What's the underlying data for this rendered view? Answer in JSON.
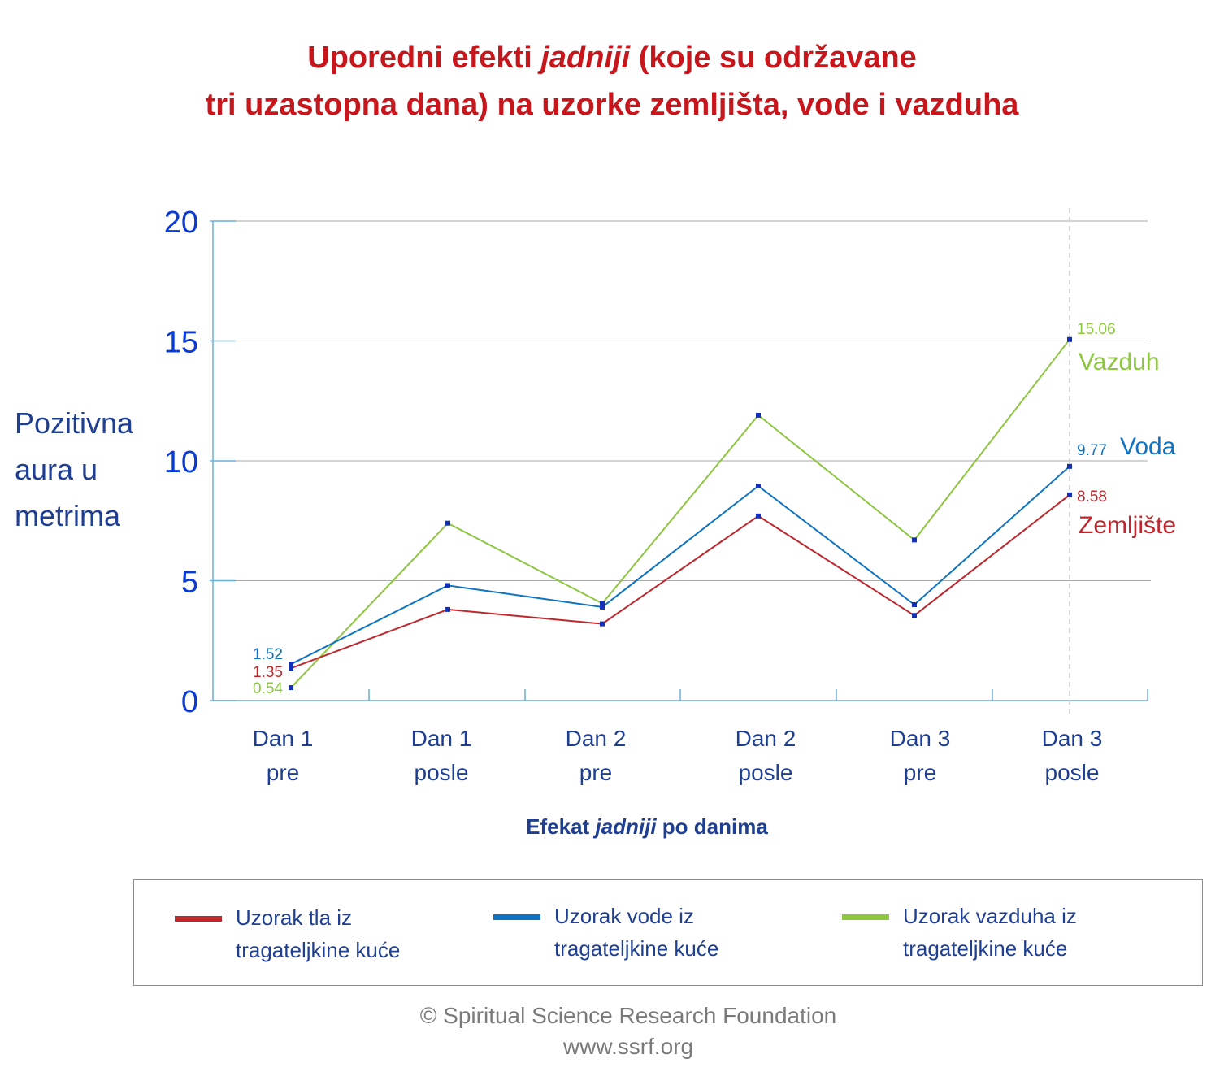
{
  "title": {
    "line1_before": "Uporedni efekti ",
    "line1_italic": "jadniji",
    "line1_after": " (koje su održavane",
    "line2": "tri uzastopna dana) na uzorke zemljišta, vode i vazduha"
  },
  "axes": {
    "ylabel_lines": [
      "Pozitivna",
      "aura u",
      "metrima"
    ],
    "xlabel_before": "Efekat ",
    "xlabel_italic": "jadniji",
    "xlabel_after": " po danima"
  },
  "chart_data": {
    "type": "line",
    "categories": [
      [
        "Dan 1",
        "pre"
      ],
      [
        "Dan 1",
        "posle"
      ],
      [
        "Dan 2",
        "pre"
      ],
      [
        "Dan 2",
        "posle"
      ],
      [
        "Dan 3",
        "pre"
      ],
      [
        "Dan 3",
        "posle"
      ]
    ],
    "ylim": [
      0,
      20
    ],
    "yticks": [
      0,
      5,
      10,
      15,
      20
    ],
    "grid": true,
    "series": [
      {
        "name": "Zemljište",
        "color": "#c0262c",
        "values": [
          1.35,
          3.8,
          3.2,
          7.7,
          3.55,
          8.58
        ],
        "first_label": "1.35",
        "last_label": "8.58"
      },
      {
        "name": "Voda",
        "color": "#0e73c2",
        "values": [
          1.52,
          4.8,
          3.9,
          8.95,
          4.0,
          9.77
        ],
        "first_label": "1.52",
        "last_label": "9.77"
      },
      {
        "name": "Vazduh",
        "color": "#8dc63f",
        "values": [
          0.54,
          7.4,
          4.05,
          11.9,
          6.7,
          15.06
        ],
        "first_label": "0.54",
        "last_label": "15.06"
      }
    ]
  },
  "legend": [
    {
      "line1": "Uzorak tla iz",
      "line2": "tragateljkine kuće",
      "color": "#c0262c"
    },
    {
      "line1": "Uzorak vode iz",
      "line2": "tragateljkine kuće",
      "color": "#0e73c2"
    },
    {
      "line1": "Uzorak vazduha iz",
      "line2": "tragateljkine kuće",
      "color": "#8dc63f"
    }
  ],
  "footer": {
    "copyright": "© Spiritual Science Research Foundation",
    "url": "www.ssrf.org"
  },
  "colors": {
    "title": "#c8161d",
    "axis_text": "#1f3f93",
    "tick_text": "#0a3ad6",
    "axis_line": "#6aaed8",
    "grid": "#a9a9a9",
    "marker": "#1530b8"
  }
}
